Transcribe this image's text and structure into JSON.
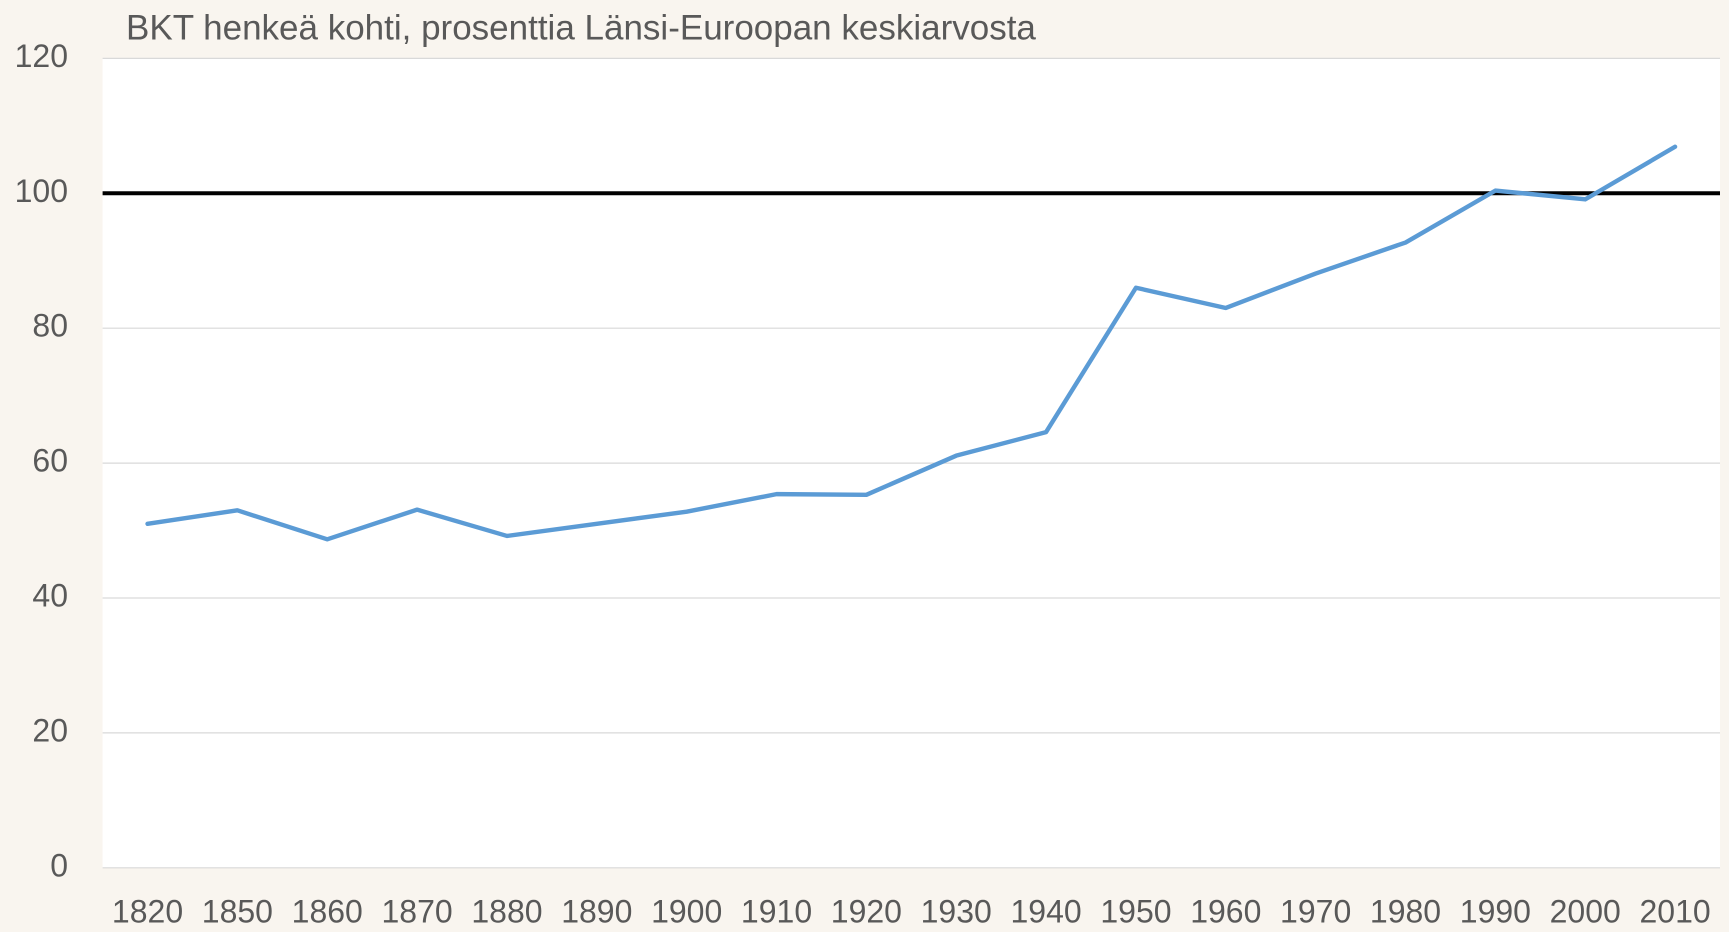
{
  "chart_data": {
    "type": "line",
    "title": "BKT henkeä kohti, prosenttia Länsi-Euroopan keskiarvosta",
    "categories": [
      "1820",
      "1850",
      "1860",
      "1870",
      "1880",
      "1890",
      "1900",
      "1910",
      "1920",
      "1930",
      "1940",
      "1950",
      "1960",
      "1970",
      "1980",
      "1990",
      "2000",
      "2010"
    ],
    "series": [
      {
        "name": "BKT henkeä kohti",
        "color": "#5b9bd5",
        "values": [
          51.0,
          53.0,
          48.7,
          53.1,
          49.2,
          51.0,
          52.8,
          55.4,
          55.3,
          61.1,
          64.6,
          86.0,
          83.0,
          88.1,
          92.7,
          100.4,
          99.1,
          106.9
        ]
      }
    ],
    "reference_line": {
      "value": 100,
      "color": "#000000"
    },
    "ylim": [
      0,
      120
    ],
    "yticks": [
      0,
      20,
      40,
      60,
      80,
      100,
      120
    ],
    "grid": true
  }
}
